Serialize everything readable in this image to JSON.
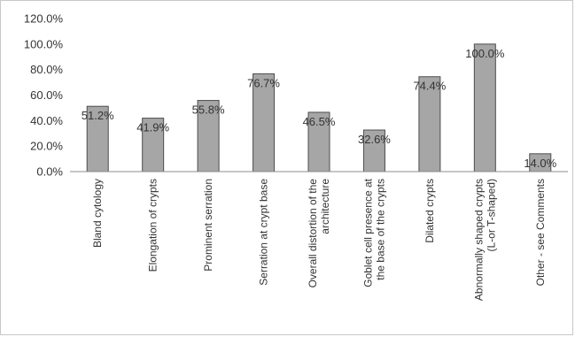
{
  "chart_data": {
    "type": "bar",
    "categories": [
      [
        "Bland cytology"
      ],
      [
        "Elongation of crypts"
      ],
      [
        "Prominent serration"
      ],
      [
        "Serration at crypt base"
      ],
      [
        "Overall distortion of the",
        "architecture"
      ],
      [
        "Goblet cell presence at",
        "the base of the crypts"
      ],
      [
        "Dilated crypts"
      ],
      [
        "Abnormally shaped crypts",
        "(L-or T-shaped)"
      ],
      [
        "Other - see Comments"
      ]
    ],
    "values": [
      51.2,
      41.9,
      55.8,
      76.7,
      46.5,
      32.6,
      74.4,
      100.0,
      14.0
    ],
    "data_labels": [
      "51.2%",
      "41.9%",
      "55.8%",
      "76.7%",
      "46.5%",
      "32.6%",
      "74.4%",
      "100.0%",
      "14.0%"
    ],
    "yticks": [
      0,
      20,
      40,
      60,
      80,
      100,
      120
    ],
    "ytick_labels": [
      "0.0%",
      "20.0%",
      "40.0%",
      "60.0%",
      "80.0%",
      "100.0%",
      "120.0%"
    ],
    "ylim": [
      0,
      120
    ],
    "grid": false,
    "bar_color": "#a6a6a6",
    "bar_edge_color": "#4d4d4d",
    "title": "",
    "xlabel": "",
    "ylabel": ""
  }
}
